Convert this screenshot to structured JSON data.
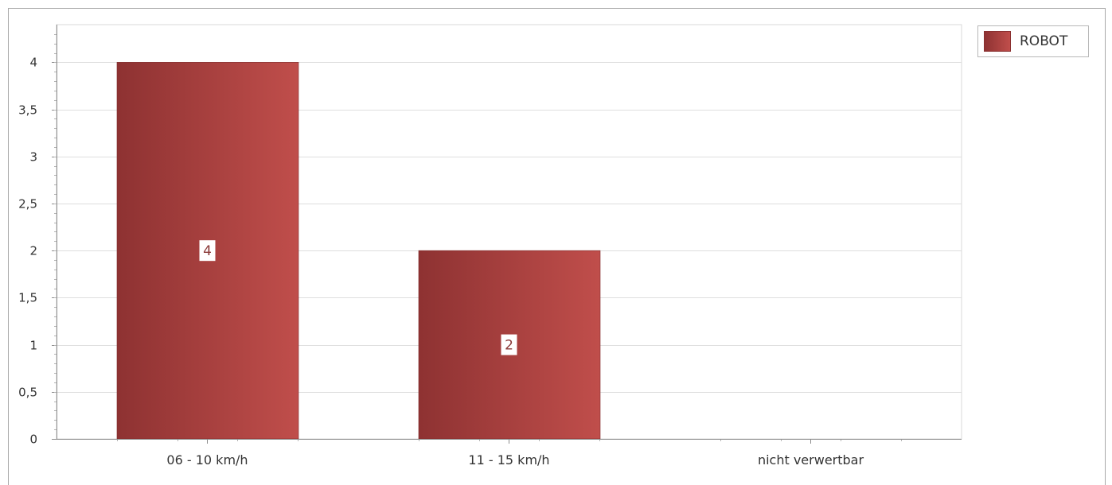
{
  "chart_data": {
    "type": "bar",
    "categories": [
      "06 - 10 km/h",
      "11 - 15 km/h",
      "nicht verwertbar"
    ],
    "series": [
      {
        "name": "ROBOT",
        "values": [
          4,
          2,
          0
        ],
        "data_labels": [
          "4",
          "2",
          ""
        ]
      }
    ],
    "yticks": [
      "0",
      "0,5",
      "1",
      "1,5",
      "2",
      "2,5",
      "3",
      "3,5",
      "4"
    ],
    "ylim": [
      0,
      4.4
    ],
    "grid": true,
    "legend_position": "top-right",
    "colors": {
      "bar_dark": "#8e3232",
      "bar_light": "#c04e4b",
      "grid": "#dedede",
      "axis": "#8c8c8c"
    }
  },
  "legend": {
    "items": [
      {
        "label": "ROBOT",
        "color": "#a73d3b"
      }
    ]
  }
}
